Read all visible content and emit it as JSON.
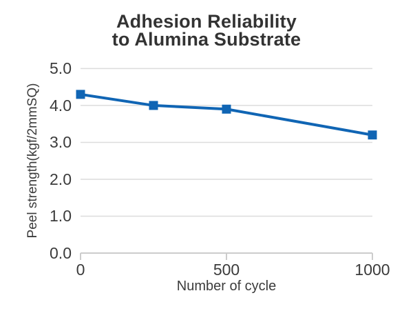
{
  "chart_data": {
    "type": "line",
    "title": "Adhesion Reliability to Alumina Substrate",
    "title_line1": "Adhesion Reliability",
    "title_line2": "to Alumina Substrate",
    "xlabel": "Number of cycle",
    "ylabel": "Peel strength(kgf/2mmSQ)",
    "x": [
      0,
      250,
      500,
      1000
    ],
    "series": [
      {
        "name": "Peel strength",
        "values": [
          4.3,
          4.0,
          3.9,
          3.2
        ]
      }
    ],
    "xticks": [
      0,
      500,
      1000
    ],
    "xtick_labels": [
      "0",
      "500",
      "1000"
    ],
    "yticks": [
      0,
      1,
      2,
      3,
      4,
      5
    ],
    "ytick_labels": [
      "0.0",
      "1.0",
      "2.0",
      "3.0",
      "4.0",
      "5.0"
    ],
    "xlim": [
      0,
      1000
    ],
    "ylim": [
      0,
      5
    ],
    "grid": "horizontal",
    "legend": "none",
    "colors": {
      "line": "#1065b4",
      "marker": "#1065b4",
      "grid": "#dcdcdc",
      "axis": "#cccccc",
      "tick_text": "#3b3b3b",
      "title_text": "#333333",
      "background": "#ffffff"
    }
  }
}
